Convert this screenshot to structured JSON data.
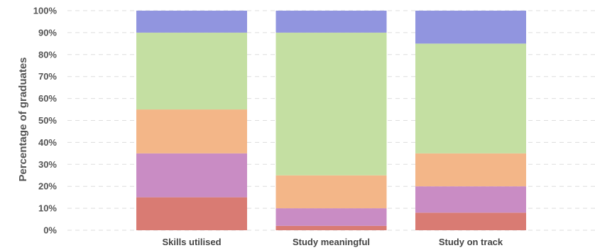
{
  "chart_data": {
    "type": "bar",
    "stacked": true,
    "normalized": true,
    "categories": [
      "Skills utilised",
      "Study meaningful",
      "Study on track"
    ],
    "series": [
      {
        "color": "#d97b73",
        "values": [
          15,
          2,
          8
        ]
      },
      {
        "color": "#c98cc4",
        "values": [
          20,
          8,
          12
        ]
      },
      {
        "color": "#f3b688",
        "values": [
          20,
          15,
          15
        ]
      },
      {
        "color": "#c4dfa2",
        "values": [
          35,
          65,
          50
        ]
      },
      {
        "color": "#9195df",
        "values": [
          10,
          10,
          15
        ]
      }
    ],
    "xlabel": "",
    "ylabel": "Percentage of graduates",
    "ylim": [
      0,
      100
    ],
    "yticks": [
      "0%",
      "10%",
      "20%",
      "30%",
      "40%",
      "50%",
      "60%",
      "70%",
      "80%",
      "90%",
      "100%"
    ],
    "grid": "horizontal dashed",
    "legend": "none"
  }
}
